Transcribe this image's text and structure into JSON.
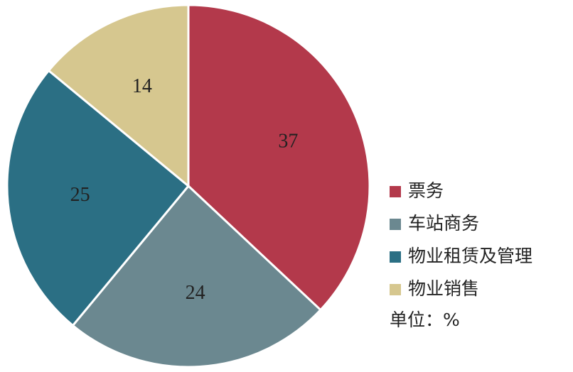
{
  "chart_data": {
    "type": "pie",
    "categories": [
      "票务",
      "车站商务",
      "物业租赁及管理",
      "物业销售"
    ],
    "values": [
      37,
      24,
      25,
      14
    ],
    "colors": [
      "#b3394b",
      "#6b8890",
      "#2b6f84",
      "#d6c78f"
    ],
    "unit_note": "单位：%"
  }
}
